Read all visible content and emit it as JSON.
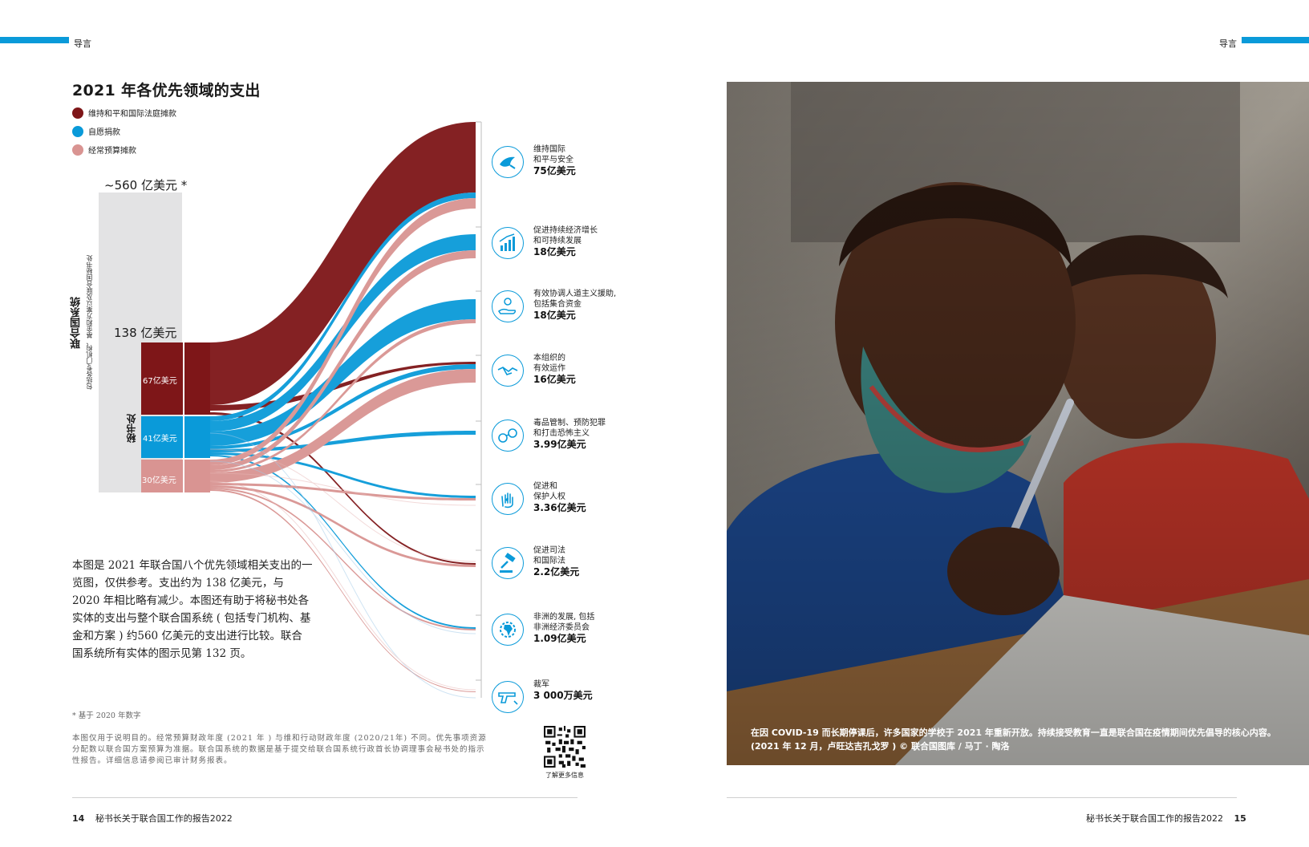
{
  "header": {
    "left_section": "导言",
    "right_section": "导言"
  },
  "title": "2021 年各优先领域的支出",
  "legend": [
    {
      "label": "维持和平和国际法庭摊款",
      "color": "#7e1618"
    },
    {
      "label": "自愿捐款",
      "color": "#0a9ad9"
    },
    {
      "label": "经常预算摊款",
      "color": "#d99492"
    }
  ],
  "system": {
    "total_label": "~560 亿美元 *",
    "name": "联合国系统",
    "subtitle": "包括各专门机构、基金和方案以及联合国秘书处",
    "secretariat_total": "138 亿美元",
    "secretariat_name": "秘书处",
    "segments": [
      {
        "label": "67亿美元",
        "value": 67,
        "color": "#7e1618"
      },
      {
        "label": "41亿美元",
        "value": 41,
        "color": "#0a9ad9"
      },
      {
        "label": "30亿美元",
        "value": 30,
        "color": "#d99492"
      }
    ]
  },
  "categories": [
    {
      "lines": [
        "维持国际",
        "和平与安全"
      ],
      "value": "75亿美元",
      "icon": "dove-icon"
    },
    {
      "lines": [
        "促进持续经济增长",
        "和可持续发展"
      ],
      "value": "18亿美元",
      "icon": "growth-chart-icon"
    },
    {
      "lines": [
        "有效协调人道主义援助,",
        "包括集合资金"
      ],
      "value": "18亿美元",
      "icon": "helping-hand-icon"
    },
    {
      "lines": [
        "本组织的",
        "有效运作"
      ],
      "value": "16亿美元",
      "icon": "handshake-icon"
    },
    {
      "lines": [
        "毒品管制、预防犯罪",
        "和打击恐怖主义"
      ],
      "value": "3.99亿美元",
      "icon": "handcuffs-icon"
    },
    {
      "lines": [
        "促进和",
        "保护人权"
      ],
      "value": "3.36亿美元",
      "icon": "raised-hand-icon"
    },
    {
      "lines": [
        "促进司法",
        "和国际法"
      ],
      "value": "2.2亿美元",
      "icon": "gavel-icon"
    },
    {
      "lines": [
        "非洲的发展, 包括",
        "非洲经济委员会"
      ],
      "value": "1.09亿美元",
      "icon": "africa-gear-icon"
    },
    {
      "lines": [
        "裁军"
      ],
      "value": "3 000万美元",
      "icon": "gun-icon"
    }
  ],
  "paragraph": "本图是 2021 年联合国八个优先领域相关支出的一览图，仅供参考。支出约为 138 亿美元，与 2020 年相比略有减少。本图还有助于将秘书处各实体的支出与整个联合国系统 ( 包括专门机构、基金和方案 ) 约560 亿美元的支出进行比较。联合国系统所有实体的图示见第 132 页。",
  "footnote_star": "* 基于 2020 年数字",
  "footnote_body": "本图仅用于说明目的。经常预算财政年度 (2021 年 ) 与维和行动财政年度 (2020/21年) 不同。优先事项资源分配数以联合国方案预算为准据。联合国系统的数据是基于提交给联合国系统行政首长协调理事会秘书处的指示性报告。详细信息请参阅已审计财务报表。",
  "qr_label": "了解更多信息",
  "photo_caption": "在因 COVID-19 而长期停课后，许多国家的学校于 2021 年重新开放。持续接受教育一直是联合国在疫情期间优先倡导的核心内容。(2021 年 12 月，卢旺达吉孔戈罗 ) © 联合国图库 / 马丁 · 陶洛",
  "footer": {
    "left_number": "14",
    "left_title": "秘书长关于联合国工作的报告2022",
    "right_title": "秘书长关于联合国工作的报告2022",
    "right_number": "15"
  }
}
